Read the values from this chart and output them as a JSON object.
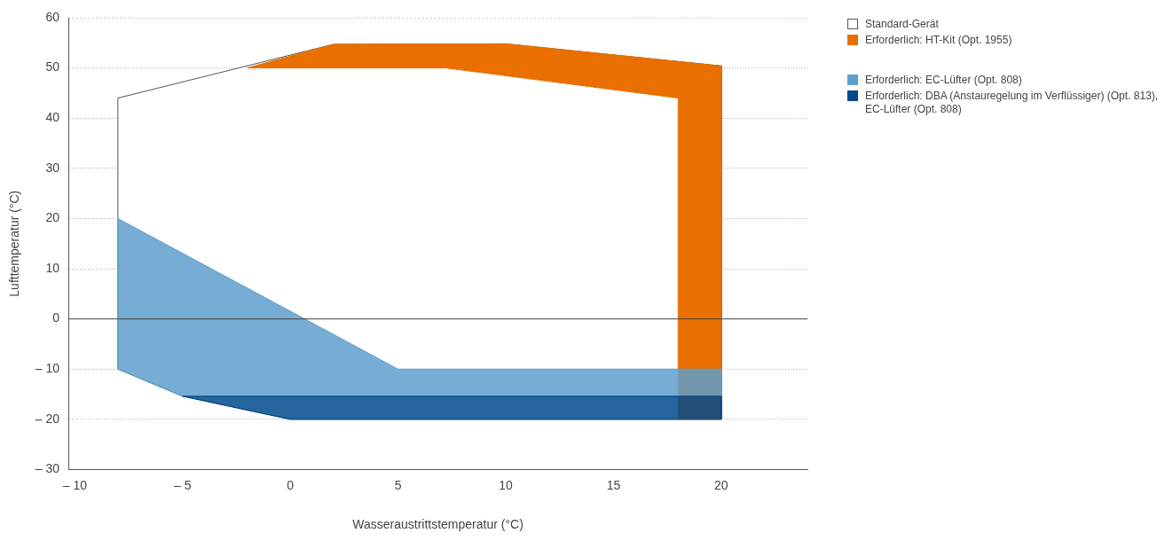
{
  "chart_data": {
    "type": "area",
    "xlabel": "Wasseraustrittstemperatur (°C)",
    "ylabel": "Lufttemperatur (°C)",
    "xlim": [
      -10.3,
      24
    ],
    "ylim": [
      -30,
      60
    ],
    "xticks": [
      {
        "value": -10,
        "label": "– 10"
      },
      {
        "value": -5,
        "label": "– 5"
      },
      0,
      5,
      10,
      15,
      20
    ],
    "yticks": [
      {
        "value": -30,
        "label": "– 30"
      },
      {
        "value": -20,
        "label": "– 20"
      },
      {
        "value": -10,
        "label": "– 10"
      },
      0,
      10,
      20,
      30,
      40,
      50,
      60
    ],
    "grid": "y",
    "legend": "right",
    "ref_lines": [
      {
        "axis": "y",
        "value": 0,
        "color": "#444444",
        "line_style": "solid"
      }
    ],
    "series": [
      {
        "name": "Standard-Gerät",
        "color": "#ffffff",
        "x": [
          -8,
          2,
          10,
          20,
          20,
          0,
          -5,
          -8,
          -8
        ],
        "values": [
          44,
          54.7,
          54.8,
          50.4,
          -20,
          -20,
          -15.4,
          -10,
          44
        ]
      },
      {
        "name": "Erforderlich: HT-Kit (Opt. 1955)",
        "color": "#e86f00",
        "x": [
          -2,
          2,
          10,
          20,
          20,
          18,
          18,
          7.2,
          -2
        ],
        "values": [
          50,
          54.7,
          54.8,
          50.4,
          -20,
          -20,
          44,
          50,
          50
        ]
      },
      {
        "name": "Erforderlich: EC-Lüfter (Opt. 808)",
        "color": "#5f9fcc",
        "x": [
          -8,
          5,
          20,
          20,
          -5,
          -8,
          -8
        ],
        "values": [
          20,
          -10,
          -10,
          -15.4,
          -15.4,
          -10,
          20
        ]
      },
      {
        "name": "Erforderlich: DBA (Anstauregelung im Verflüssiger) (Opt. 813), EC-Lüfter (Opt. 808)",
        "color": "#004a8d",
        "x": [
          -5,
          20,
          20,
          0,
          -5
        ],
        "values": [
          -15.4,
          -15.4,
          -20,
          -20,
          -15.4
        ]
      }
    ]
  }
}
